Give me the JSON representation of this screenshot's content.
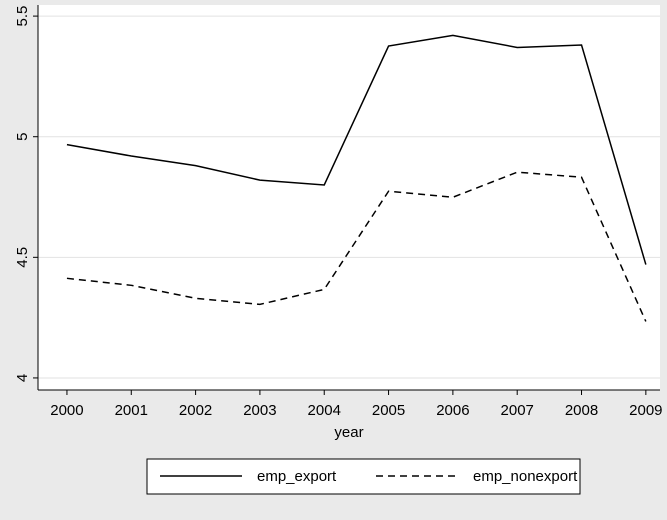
{
  "chart_data": {
    "type": "line",
    "x_label": "year",
    "x": [
      2000,
      2001,
      2002,
      2003,
      2004,
      2005,
      2006,
      2007,
      2008,
      2009
    ],
    "series": [
      {
        "name": "emp_export",
        "color": "#000000",
        "dash": "solid",
        "values": [
          4.967,
          4.92,
          4.88,
          4.82,
          4.8,
          5.376,
          5.42,
          5.37,
          5.38,
          4.47
        ]
      },
      {
        "name": "emp_nonexport",
        "color": "#000000",
        "dash": "dashed",
        "values": [
          4.413,
          4.384,
          4.33,
          4.305,
          4.367,
          4.774,
          4.749,
          4.853,
          4.832,
          4.234
        ]
      }
    ],
    "xlim": [
      1999.55,
      2009.22
    ],
    "xticks": [
      2000,
      2001,
      2002,
      2003,
      2004,
      2005,
      2006,
      2007,
      2008,
      2009
    ],
    "ylim": [
      3.95,
      5.546
    ],
    "yticks": [
      4,
      4.5,
      5,
      5.5
    ],
    "grid": true,
    "legend": "bottom"
  }
}
